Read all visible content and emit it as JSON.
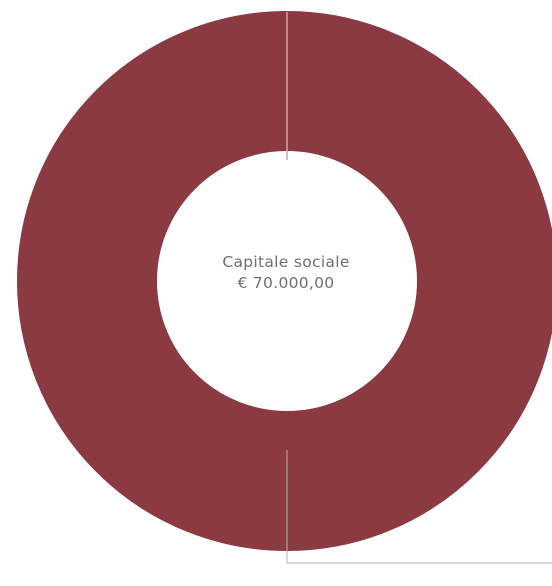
{
  "chart_data": {
    "type": "pie",
    "variant": "donut",
    "center_label": {
      "title": "Capitale sociale",
      "value": "€ 70.000,00"
    },
    "slices": [
      {
        "value": 70000,
        "color": "#8b3a41"
      }
    ],
    "total": 70000
  }
}
